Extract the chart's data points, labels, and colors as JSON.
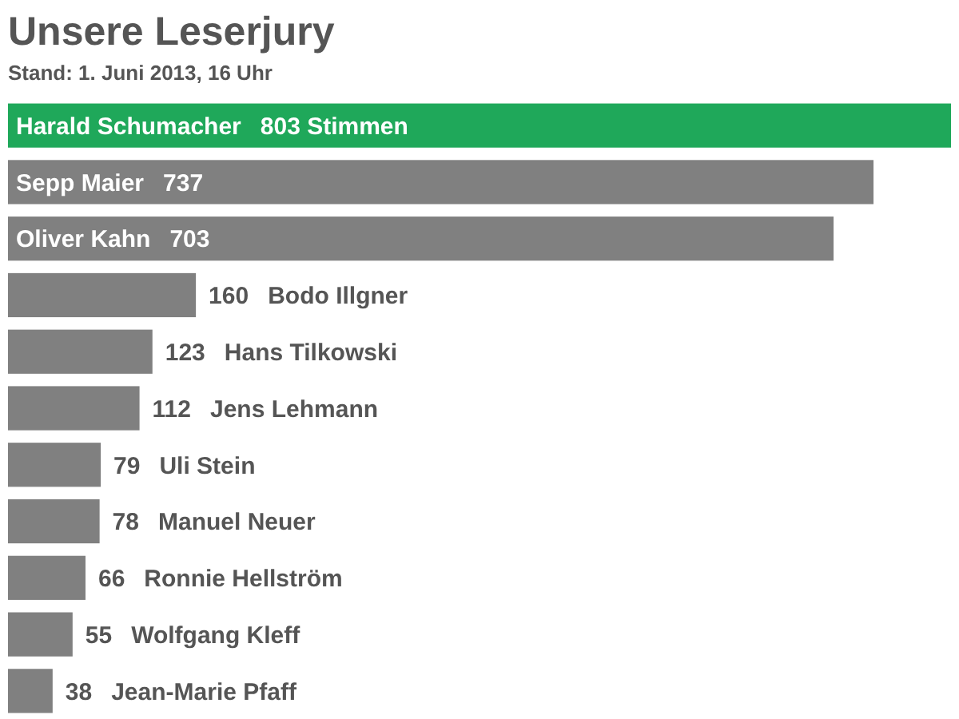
{
  "chart_data": {
    "type": "bar",
    "orientation": "horizontal",
    "title": "Unsere Leserjury",
    "subtitle": "Stand: 1. Juni 2013, 16 Uhr",
    "categories": [
      "Harald Schumacher",
      "Sepp Maier",
      "Oliver Kahn",
      "Bodo Illgner",
      "Hans Tilkowski",
      "Jens Lehmann",
      "Uli Stein",
      "Manuel Neuer",
      "Ronnie Hellström",
      "Wolfgang Kleff",
      "Jean-Marie Pfaff"
    ],
    "values": [
      803,
      737,
      703,
      160,
      123,
      112,
      79,
      78,
      66,
      55,
      38
    ],
    "value_labels": [
      "803 Stimmen",
      "737",
      "703",
      "160",
      "123",
      "112",
      "79",
      "78",
      "66",
      "55",
      "38"
    ],
    "colors": [
      "#1fa85a",
      "#808080",
      "#808080",
      "#808080",
      "#808080",
      "#808080",
      "#808080",
      "#808080",
      "#808080",
      "#808080",
      "#808080"
    ],
    "relative": false
  }
}
